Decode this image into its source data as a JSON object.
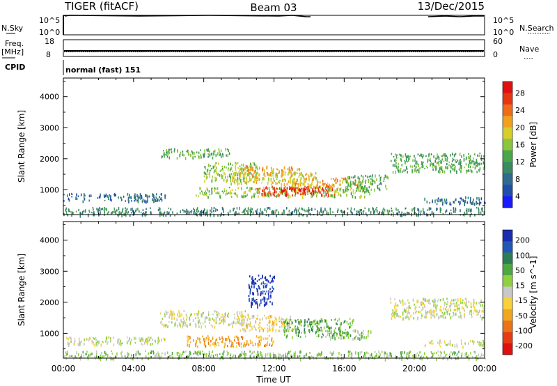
{
  "header": {
    "title": "TIGER (fitACF)",
    "beam": "Beam 03",
    "date": "13/Dec/2015"
  },
  "status_panels": {
    "left_labels": {
      "nsky": "N.Sky",
      "freq": "Freq.",
      "mhz": "[MHz]",
      "cpid": "CPID"
    },
    "right_labels": {
      "nsearch": "N.Search",
      "nave": "Nave"
    },
    "noise_ticks": [
      "10^5",
      "10^0"
    ],
    "freq_ticks": [
      "18",
      "8"
    ],
    "nave_ticks": [
      "60",
      "0"
    ],
    "cpid_text": "normal (fast) 151"
  },
  "chart_data": [
    {
      "type": "heatmap",
      "name": "power",
      "xlabel": "Time UT",
      "ylabel": "Slant Range [km]",
      "xlim_hours": [
        0,
        24
      ],
      "ylim_km": [
        200,
        4600
      ],
      "x_ticks": [
        "00:00",
        "04:00",
        "08:00",
        "12:00",
        "16:00",
        "20:00",
        "00:00"
      ],
      "y_ticks": [
        1000,
        2000,
        3000,
        4000
      ],
      "colorbar": {
        "label": "Power [dB]",
        "ticks": [
          "4",
          "8",
          "12",
          "16",
          "20",
          "24",
          "28"
        ],
        "colors": [
          "#1a1aff",
          "#1f4fa8",
          "#2f6b8e",
          "#3a8a62",
          "#4aa64a",
          "#8cc63f",
          "#d6cf2a",
          "#f0a21e",
          "#ef6b17",
          "#e73614",
          "#e01010"
        ]
      },
      "regions": [
        {
          "t0": 0.0,
          "t1": 5.8,
          "r0": 650,
          "r1": 900,
          "level": 2
        },
        {
          "t0": 5.5,
          "t1": 9.5,
          "r0": 2050,
          "r1": 2350,
          "level": 4
        },
        {
          "t0": 8.0,
          "t1": 11.0,
          "r0": 1300,
          "r1": 1900,
          "level": 5
        },
        {
          "t0": 10.0,
          "t1": 13.5,
          "r0": 1500,
          "r1": 1800,
          "level": 7
        },
        {
          "t0": 9.5,
          "t1": 14.5,
          "r0": 1200,
          "r1": 1600,
          "level": 6
        },
        {
          "t0": 7.5,
          "t1": 17.5,
          "r0": 800,
          "r1": 1100,
          "level": 5
        },
        {
          "t0": 11.0,
          "t1": 15.5,
          "r0": 850,
          "r1": 1150,
          "level": 9
        },
        {
          "t0": 12.0,
          "t1": 14.5,
          "r0": 950,
          "r1": 1100,
          "level": 10
        },
        {
          "t0": 13.0,
          "t1": 17.0,
          "r0": 1100,
          "r1": 1400,
          "level": 7
        },
        {
          "t0": 16.0,
          "t1": 18.5,
          "r0": 1000,
          "r1": 1500,
          "level": 4
        },
        {
          "t0": 18.6,
          "t1": 24.0,
          "r0": 1600,
          "r1": 2200,
          "level": 4
        },
        {
          "t0": 20.5,
          "t1": 24.0,
          "r0": 550,
          "r1": 800,
          "level": 2
        },
        {
          "t0": 0.0,
          "t1": 24.0,
          "r0": 200,
          "r1": 450,
          "level": 3
        }
      ]
    },
    {
      "type": "heatmap",
      "name": "velocity",
      "xlabel": "Time UT",
      "ylabel": "Slant Range [km]",
      "xlim_hours": [
        0,
        24
      ],
      "ylim_km": [
        200,
        4600
      ],
      "x_ticks": [
        "00:00",
        "04:00",
        "08:00",
        "12:00",
        "16:00",
        "20:00",
        "00:00"
      ],
      "y_ticks": [
        1000,
        2000,
        3000,
        4000
      ],
      "colorbar": {
        "label": "Velocity [m s^-1]",
        "ticks": [
          "200",
          "100",
          "50",
          "15",
          "-15",
          "-50",
          "-100",
          "-200"
        ],
        "colors": [
          "#1a2db0",
          "#2058b8",
          "#2f7d53",
          "#4ea842",
          "#8fd13e",
          "#c8c8c8",
          "#f7d23a",
          "#f1a622",
          "#eb7418",
          "#e43c14",
          "#e01010"
        ]
      },
      "regions": [
        {
          "t0": 0.0,
          "t1": 5.8,
          "r0": 650,
          "r1": 900,
          "level": 5
        },
        {
          "t0": 5.5,
          "t1": 10.5,
          "r0": 1250,
          "r1": 1750,
          "level": 5
        },
        {
          "t0": 7.0,
          "t1": 12.0,
          "r0": 600,
          "r1": 950,
          "level": 7
        },
        {
          "t0": 10.0,
          "t1": 13.0,
          "r0": 1100,
          "r1": 1600,
          "level": 6
        },
        {
          "t0": 10.5,
          "t1": 12.0,
          "r0": 1900,
          "r1": 2900,
          "level": 0
        },
        {
          "t0": 12.5,
          "t1": 16.5,
          "r0": 900,
          "r1": 1500,
          "level": 3
        },
        {
          "t0": 15.0,
          "t1": 17.5,
          "r0": 850,
          "r1": 1150,
          "level": 4
        },
        {
          "t0": 18.6,
          "t1": 24.0,
          "r0": 1500,
          "r1": 2150,
          "level": 5
        },
        {
          "t0": 20.5,
          "t1": 24.0,
          "r0": 600,
          "r1": 800,
          "level": 5
        },
        {
          "t0": 0.0,
          "t1": 24.0,
          "r0": 200,
          "r1": 450,
          "level": 4
        }
      ]
    }
  ]
}
